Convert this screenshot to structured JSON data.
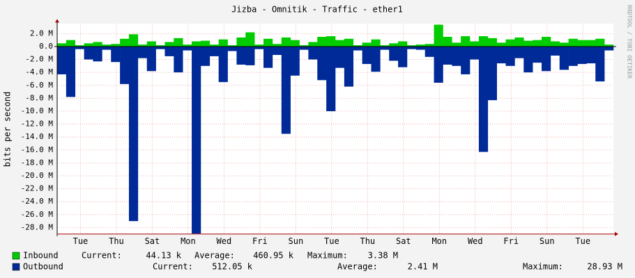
{
  "chart_data": {
    "type": "bar",
    "title": "Jizba - Omnitik - Traffic - ether1",
    "y_label": "bits per second",
    "watermark": "RRDTOOL / TOBI OETIKER",
    "ylim": [
      -29.0,
      3.5
    ],
    "yticks": [
      {
        "value": 2,
        "label": "2.0 M"
      },
      {
        "value": 0,
        "label": "0.0"
      },
      {
        "value": -2,
        "label": "-2.0 M"
      },
      {
        "value": -4,
        "label": "-4.0 M"
      },
      {
        "value": -6,
        "label": "-6.0 M"
      },
      {
        "value": -8,
        "label": "-8.0 M"
      },
      {
        "value": -10,
        "label": "-10.0 M"
      },
      {
        "value": -12,
        "label": "-12.0 M"
      },
      {
        "value": -14,
        "label": "-14.0 M"
      },
      {
        "value": -16,
        "label": "-16.0 M"
      },
      {
        "value": -18,
        "label": "-18.0 M"
      },
      {
        "value": -20,
        "label": "-20.0 M"
      },
      {
        "value": -22,
        "label": "-22.0 M"
      },
      {
        "value": -24,
        "label": "-24.0 M"
      },
      {
        "value": -26,
        "label": "-26.0 M"
      },
      {
        "value": -28,
        "label": "-28.0 M"
      }
    ],
    "xlim": [
      0,
      31
    ],
    "xticks": [
      {
        "value": 1.3,
        "label": "Tue"
      },
      {
        "value": 3.3,
        "label": "Thu"
      },
      {
        "value": 5.3,
        "label": "Sat"
      },
      {
        "value": 7.3,
        "label": "Mon"
      },
      {
        "value": 9.3,
        "label": "Wed"
      },
      {
        "value": 11.3,
        "label": "Fri"
      },
      {
        "value": 13.3,
        "label": "Sun"
      },
      {
        "value": 15.3,
        "label": "Tue"
      },
      {
        "value": 17.3,
        "label": "Thu"
      },
      {
        "value": 19.3,
        "label": "Sat"
      },
      {
        "value": 21.3,
        "label": "Mon"
      },
      {
        "value": 23.3,
        "label": "Wed"
      },
      {
        "value": 25.3,
        "label": "Fri"
      },
      {
        "value": 27.3,
        "label": "Sun"
      },
      {
        "value": 29.3,
        "label": "Tue"
      }
    ],
    "grid": true,
    "stat_labels": [
      "Current:",
      "Average:",
      "Maximum:"
    ],
    "series": [
      {
        "name": "Inbound",
        "color": "#00cc00",
        "stats": [
          "44.13 k",
          "460.95 k",
          "3.38 M"
        ],
        "values": [
          0.5,
          1.0,
          0.2,
          0.5,
          0.7,
          0.3,
          0.4,
          1.2,
          1.9,
          0.3,
          0.8,
          0.2,
          0.7,
          1.3,
          0.3,
          0.8,
          0.9,
          0.3,
          1.1,
          0.2,
          1.4,
          2.2,
          0.3,
          1.2,
          0.4,
          1.4,
          1.0,
          0.2,
          0.7,
          1.5,
          1.6,
          1.0,
          1.2,
          0.2,
          0.6,
          1.1,
          0.2,
          0.5,
          0.8,
          0.2,
          0.3,
          0.4,
          3.38,
          1.5,
          0.6,
          1.6,
          0.8,
          1.6,
          1.3,
          0.6,
          1.1,
          1.4,
          0.9,
          1.0,
          1.5,
          0.8,
          0.6,
          1.2,
          1.0,
          1.0,
          1.2,
          0.3
        ]
      },
      {
        "name": "Outbound",
        "color": "#002a97",
        "stats": [
          "512.05 k",
          "2.41 M",
          "28.93 M"
        ],
        "values": [
          -4.3,
          -7.8,
          -0.4,
          -2.0,
          -2.3,
          -0.5,
          -2.4,
          -5.8,
          -27.0,
          -1.8,
          -3.8,
          -0.4,
          -1.5,
          -4.0,
          -0.6,
          -28.93,
          -3.0,
          -1.5,
          -5.5,
          -0.7,
          -2.8,
          -2.9,
          -0.4,
          -3.3,
          -1.3,
          -13.5,
          -4.5,
          -0.5,
          -2.0,
          -5.2,
          -10.0,
          -3.3,
          -6.2,
          -0.6,
          -2.7,
          -3.9,
          -0.5,
          -2.2,
          -3.2,
          -0.4,
          -0.5,
          -1.6,
          -5.6,
          -2.8,
          -3.0,
          -4.3,
          -2.0,
          -16.3,
          -8.3,
          -2.6,
          -3.0,
          -1.8,
          -4.0,
          -2.5,
          -3.8,
          -1.4,
          -3.6,
          -3.0,
          -2.7,
          -2.6,
          -5.4,
          -0.6
        ]
      }
    ]
  }
}
